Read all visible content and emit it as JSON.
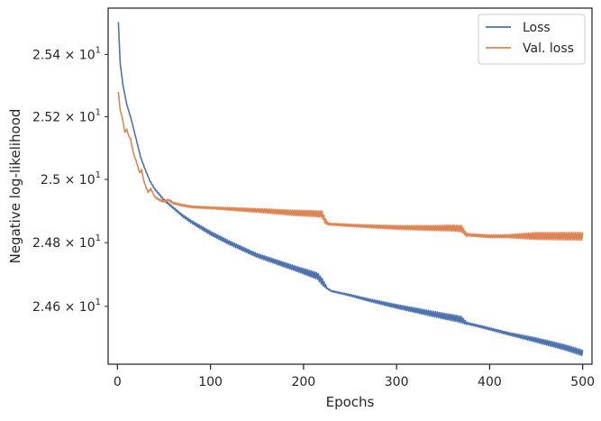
{
  "chart_data": {
    "type": "line",
    "title": "",
    "xlabel": "Epochs",
    "ylabel": "Negative log-likelihood",
    "xlim": [
      -10,
      510
    ],
    "ylim": [
      24.42,
      25.55
    ],
    "y_scale": "log",
    "grid": false,
    "legend_position": "top-right",
    "x_ticks": [
      {
        "value": 0,
        "label": "0"
      },
      {
        "value": 100,
        "label": "100"
      },
      {
        "value": 200,
        "label": "200"
      },
      {
        "value": 300,
        "label": "300"
      },
      {
        "value": 400,
        "label": "400"
      },
      {
        "value": 500,
        "label": "500"
      }
    ],
    "y_ticks": [
      {
        "value": 25.4,
        "mantissa": "2.54",
        "times": "×",
        "base": "10",
        "exp": "1"
      },
      {
        "value": 25.2,
        "mantissa": "2.52",
        "times": "×",
        "base": "10",
        "exp": "1"
      },
      {
        "value": 25.0,
        "mantissa": "2.5",
        "times": "×",
        "base": "10",
        "exp": "1"
      },
      {
        "value": 24.8,
        "mantissa": "2.48",
        "times": "×",
        "base": "10",
        "exp": "1"
      },
      {
        "value": 24.6,
        "mantissa": "2.46",
        "times": "×",
        "base": "10",
        "exp": "1"
      }
    ],
    "series": [
      {
        "name": "Loss",
        "color": "#4c72b0",
        "x": [
          1,
          3,
          6,
          10,
          15,
          20,
          25,
          30,
          35,
          40,
          50,
          60,
          70,
          80,
          100,
          120,
          150,
          180,
          200,
          215,
          222,
          226,
          230,
          250,
          270,
          300,
          330,
          350,
          365,
          370,
          375,
          400,
          420,
          450,
          480,
          500
        ],
        "y": [
          25.505,
          25.37,
          25.3,
          25.24,
          25.19,
          25.13,
          25.07,
          25.03,
          24.995,
          24.97,
          24.935,
          24.91,
          24.885,
          24.865,
          24.83,
          24.8,
          24.76,
          24.73,
          24.71,
          24.695,
          24.67,
          24.655,
          24.648,
          24.635,
          24.62,
          24.6,
          24.582,
          24.57,
          24.562,
          24.558,
          24.548,
          24.53,
          24.515,
          24.495,
          24.473,
          24.455
        ],
        "oscillation": [
          [
            0,
            0
          ],
          [
            60,
            0.003
          ],
          [
            100,
            0.006
          ],
          [
            150,
            0.006
          ],
          [
            195,
            0.008
          ],
          [
            220,
            0.011
          ],
          [
            226,
            0.002
          ],
          [
            240,
            0.002
          ],
          [
            300,
            0.006
          ],
          [
            350,
            0.009
          ],
          [
            370,
            0.01
          ],
          [
            376,
            0.003
          ],
          [
            420,
            0.004
          ],
          [
            450,
            0.007
          ],
          [
            500,
            0.009
          ]
        ]
      },
      {
        "name": "Val. loss",
        "color": "#dd8452",
        "x": [
          1,
          3,
          5,
          8,
          10,
          12,
          14,
          16,
          18,
          20,
          22,
          24,
          26,
          28,
          30,
          33,
          36,
          40,
          45,
          50,
          55,
          60,
          70,
          80,
          100,
          130,
          160,
          190,
          210,
          220,
          223,
          226,
          230,
          260,
          300,
          340,
          360,
          370,
          375,
          400,
          450,
          500
        ],
        "y": [
          25.28,
          25.22,
          25.2,
          25.15,
          25.16,
          25.14,
          25.13,
          25.1,
          25.075,
          25.06,
          25.04,
          25.02,
          25.03,
          25.0,
          24.98,
          24.96,
          24.97,
          24.945,
          24.935,
          24.93,
          24.935,
          24.925,
          24.918,
          24.913,
          24.91,
          24.905,
          24.9,
          24.894,
          24.892,
          24.89,
          24.87,
          24.86,
          24.858,
          24.853,
          24.848,
          24.846,
          24.846,
          24.844,
          24.825,
          24.82,
          24.821,
          24.82
        ],
        "oscillation": [
          [
            0,
            0
          ],
          [
            55,
            0.003
          ],
          [
            100,
            0.003
          ],
          [
            150,
            0.006
          ],
          [
            200,
            0.009
          ],
          [
            222,
            0.01
          ],
          [
            228,
            0.003
          ],
          [
            260,
            0.004
          ],
          [
            300,
            0.006
          ],
          [
            340,
            0.008
          ],
          [
            370,
            0.01
          ],
          [
            377,
            0.004
          ],
          [
            420,
            0.005
          ],
          [
            450,
            0.011
          ],
          [
            500,
            0.012
          ]
        ]
      }
    ]
  }
}
